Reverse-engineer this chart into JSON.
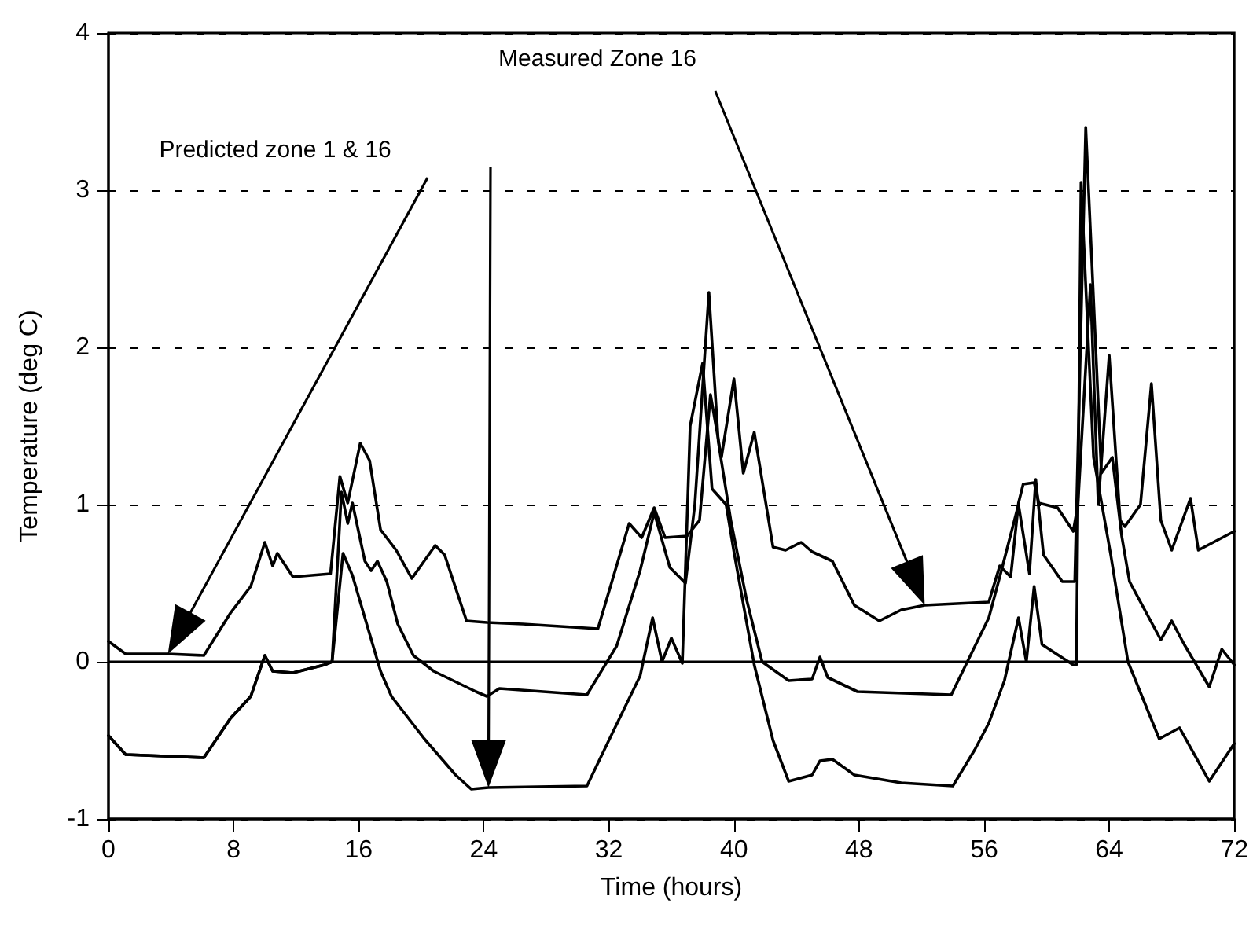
{
  "chart_data": {
    "type": "line",
    "xlabel": "Time (hours)",
    "ylabel": "Temperature (deg C)",
    "xlim": [
      0,
      72
    ],
    "xticks": [
      0,
      8,
      16,
      24,
      32,
      40,
      48,
      56,
      64,
      72
    ],
    "ylim": [
      -1,
      4
    ],
    "yticks": [
      -1,
      0,
      1,
      2,
      3,
      4
    ],
    "grid": "y",
    "marker": "none",
    "line_style": "solid",
    "ref_lines": [
      {
        "axis": "y",
        "value": 0,
        "color": "#000000"
      }
    ],
    "annotations": [
      "Measured Zone 16",
      "Predicted zone 1 & 16"
    ],
    "series": [
      {
        "color": "#000000",
        "x": [
          0,
          1.1,
          3.8,
          6.1,
          7.8,
          9.1,
          10,
          10.5,
          10.8,
          11.8,
          14.2,
          14.8,
          15.3,
          16.1,
          16.7,
          17.4,
          18.4,
          19.4,
          20.9,
          21.5,
          22.9,
          24.2,
          26.5,
          31.3,
          33.3,
          34.1,
          34.9,
          35.6,
          37,
          37.8,
          38.5,
          39.2,
          40,
          40.6,
          41.3,
          42.5,
          43.3,
          44.3,
          45,
          46.3,
          47.7,
          49.3,
          50.7,
          52.2,
          56.3,
          57,
          57.7,
          58.2,
          58.5,
          59.2,
          59.5,
          60.7,
          61.7,
          62,
          62.8,
          63.3,
          64,
          64.7,
          65,
          66,
          66.7,
          67.3,
          68,
          69.2,
          69.7,
          72
        ],
        "values": [
          0.13,
          0.05,
          0.05,
          0.04,
          0.31,
          0.48,
          0.76,
          0.61,
          0.69,
          0.54,
          0.56,
          1.18,
          1.01,
          1.39,
          1.28,
          0.84,
          0.71,
          0.53,
          0.74,
          0.68,
          0.26,
          0.25,
          0.24,
          0.21,
          0.88,
          0.79,
          0.98,
          0.79,
          0.8,
          0.9,
          1.7,
          1.3,
          1.8,
          1.2,
          1.46,
          0.73,
          0.71,
          0.76,
          0.7,
          0.64,
          0.36,
          0.26,
          0.33,
          0.36,
          0.38,
          0.61,
          0.54,
          1.01,
          1.13,
          1.14,
          1.01,
          0.98,
          0.83,
          1.0,
          2.4,
          1.0,
          1.95,
          0.9,
          0.86,
          1.0,
          1.77,
          0.9,
          0.71,
          1.04,
          0.71,
          0.83
        ]
      },
      {
        "color": "#000000",
        "x": [
          0,
          1.1,
          6.1,
          7.8,
          9.1,
          10,
          10.5,
          11.8,
          13.8,
          14.3,
          14.9,
          15.3,
          15.6,
          16.4,
          16.8,
          17.2,
          17.8,
          18.5,
          19.5,
          20.8,
          23.5,
          24.2,
          25,
          30.6,
          32.5,
          34,
          34.9,
          35.9,
          36.9,
          37.5,
          38.4,
          39,
          39.8,
          40.8,
          41.8,
          43.5,
          45,
          45.5,
          46,
          47.9,
          53.9,
          56.3,
          57,
          58.2,
          58.9,
          59.3,
          59.8,
          61,
          61.8,
          62.5,
          63.5,
          64.2,
          64.8,
          65.3,
          67.3,
          68,
          68.8,
          70.4,
          71.2,
          72
        ],
        "values": [
          -0.47,
          -0.59,
          -0.61,
          -0.36,
          -0.22,
          0.04,
          -0.06,
          -0.07,
          -0.02,
          0.0,
          1.08,
          0.88,
          1.01,
          0.64,
          0.58,
          0.64,
          0.51,
          0.24,
          0.04,
          -0.06,
          -0.19,
          -0.22,
          -0.17,
          -0.21,
          0.1,
          0.58,
          0.95,
          0.6,
          0.5,
          1.0,
          2.35,
          1.4,
          0.9,
          0.4,
          0.0,
          -0.12,
          -0.11,
          0.03,
          -0.1,
          -0.19,
          -0.21,
          0.28,
          0.54,
          1.0,
          0.56,
          1.16,
          0.68,
          0.51,
          0.51,
          3.4,
          1.2,
          1.3,
          0.8,
          0.51,
          0.14,
          0.26,
          0.11,
          -0.16,
          0.08,
          -0.02
        ]
      },
      {
        "color": "#000000",
        "x": [
          0,
          1.1,
          6.1,
          7.8,
          9.1,
          10,
          10.5,
          11.8,
          13.8,
          14.3,
          15,
          15.6,
          17.4,
          18.1,
          20.2,
          22.2,
          23.2,
          24.3,
          30.6,
          32,
          34,
          34.8,
          35.4,
          36,
          36.7,
          37.2,
          38,
          38.6,
          39.5,
          40,
          41.3,
          42.5,
          43.5,
          45,
          45.5,
          46.3,
          47.7,
          50.7,
          54,
          55.4,
          56.3,
          57.3,
          58.2,
          58.7,
          59.2,
          59.7,
          61.7,
          61.9,
          62.2,
          63,
          64.1,
          65.2,
          67.2,
          68.5,
          70.4,
          72
        ],
        "values": [
          -0.47,
          -0.59,
          -0.61,
          -0.36,
          -0.22,
          0.04,
          -0.06,
          -0.07,
          -0.02,
          0.0,
          0.69,
          0.55,
          -0.06,
          -0.22,
          -0.49,
          -0.72,
          -0.81,
          -0.8,
          -0.79,
          -0.5,
          -0.09,
          0.28,
          0.0,
          0.15,
          -0.01,
          1.5,
          1.9,
          1.1,
          1.0,
          0.7,
          -0.02,
          -0.5,
          -0.76,
          -0.72,
          -0.63,
          -0.62,
          -0.72,
          -0.77,
          -0.79,
          -0.56,
          -0.39,
          -0.12,
          0.28,
          0.0,
          0.48,
          0.11,
          -0.02,
          -0.02,
          3.05,
          1.3,
          0.68,
          0.0,
          -0.49,
          -0.42,
          -0.76,
          -0.52
        ]
      }
    ]
  }
}
